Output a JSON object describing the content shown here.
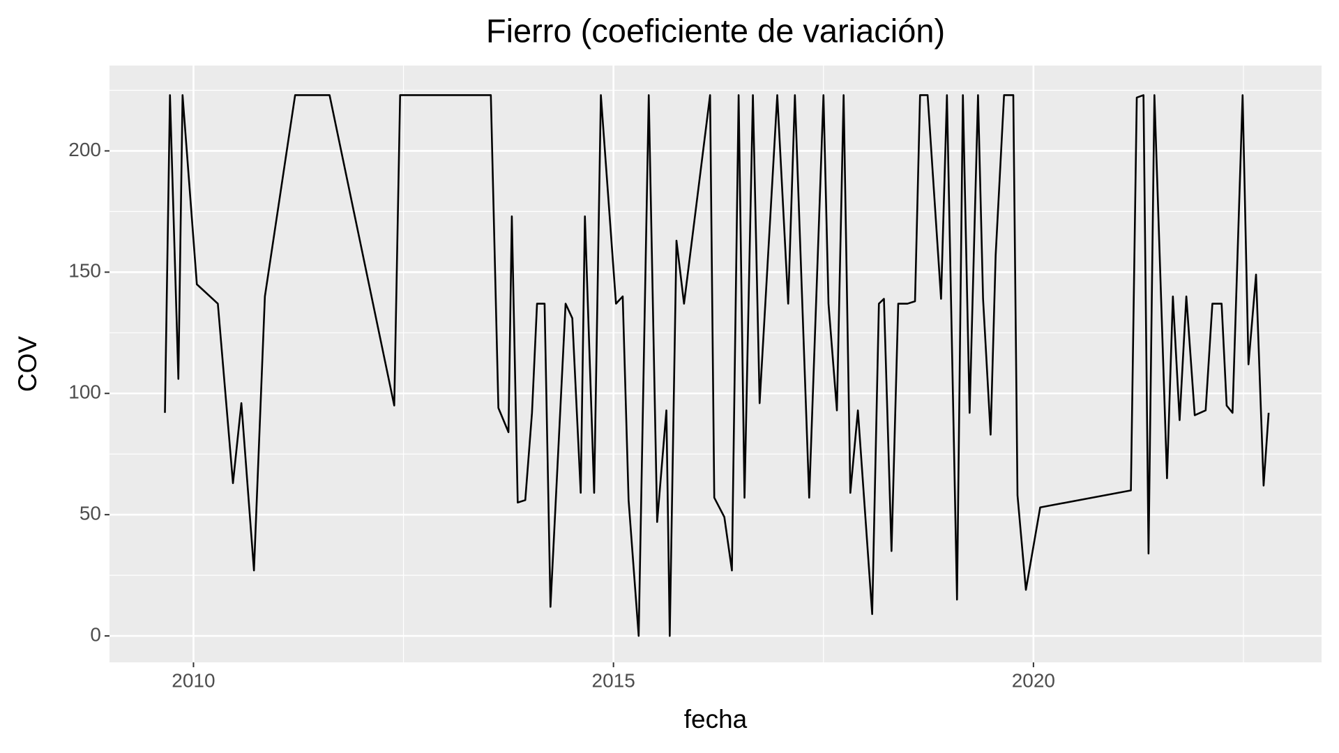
{
  "chart_data": {
    "type": "line",
    "title": "Fierro (coeficiente de variación)",
    "x_label": "fecha",
    "y_label": "COV",
    "x": [
      2009.66,
      2009.72,
      2009.82,
      2009.87,
      2010.04,
      2010.29,
      2010.47,
      2010.57,
      2010.72,
      2010.85,
      2011.21,
      2011.62,
      2012.39,
      2012.46,
      2013.54,
      2013.63,
      2013.75,
      2013.79,
      2013.86,
      2013.95,
      2014.03,
      2014.09,
      2014.18,
      2014.25,
      2014.43,
      2014.51,
      2014.61,
      2014.66,
      2014.77,
      2014.85,
      2015.03,
      2015.11,
      2015.18,
      2015.3,
      2015.42,
      2015.52,
      2015.63,
      2015.67,
      2015.75,
      2015.84,
      2016.15,
      2016.2,
      2016.32,
      2016.41,
      2016.49,
      2016.56,
      2016.66,
      2016.74,
      2016.95,
      2017.08,
      2017.16,
      2017.33,
      2017.5,
      2017.56,
      2017.66,
      2017.74,
      2017.82,
      2017.91,
      2018.08,
      2018.16,
      2018.22,
      2018.31,
      2018.39,
      2018.5,
      2018.59,
      2018.65,
      2018.74,
      2018.9,
      2018.97,
      2019.09,
      2019.16,
      2019.24,
      2019.34,
      2019.4,
      2019.49,
      2019.55,
      2019.65,
      2019.76,
      2019.81,
      2019.91,
      2020.08,
      2021.16,
      2021.23,
      2021.31,
      2021.37,
      2021.44,
      2021.59,
      2021.66,
      2021.74,
      2021.82,
      2021.92,
      2022.05,
      2022.13,
      2022.24,
      2022.3,
      2022.37,
      2022.49,
      2022.56,
      2022.65,
      2022.74,
      2022.8
    ],
    "series": [
      {
        "name": "COV",
        "color": "#000000",
        "values": [
          92,
          223,
          106,
          223,
          145,
          137,
          63,
          96,
          27,
          140,
          223,
          223,
          95,
          223,
          223,
          94,
          84,
          173,
          55,
          56,
          92,
          137,
          137,
          12,
          137,
          131,
          59,
          173,
          59,
          223,
          137,
          140,
          56,
          0,
          223,
          47,
          93,
          0,
          163,
          137,
          223,
          57,
          49,
          27,
          223,
          57,
          223,
          96,
          223,
          137,
          223,
          57,
          223,
          137,
          93,
          223,
          59,
          93,
          9,
          137,
          139,
          35,
          137,
          137,
          138,
          223,
          223,
          139,
          223,
          15,
          223,
          92,
          223,
          139,
          83,
          157,
          223,
          223,
          58,
          19,
          53,
          60,
          222,
          223,
          34,
          223,
          65,
          140,
          89,
          140,
          91,
          93,
          137,
          137,
          95,
          92,
          223,
          112,
          149,
          62,
          92
        ]
      }
    ],
    "xlim": [
      2009.0,
      2023.43
    ],
    "xticks": [
      2010,
      2015,
      2020
    ],
    "ylim": [
      -10.9,
      235.2
    ],
    "yticks": [
      0,
      50,
      100,
      150,
      200
    ],
    "grid": true
  }
}
